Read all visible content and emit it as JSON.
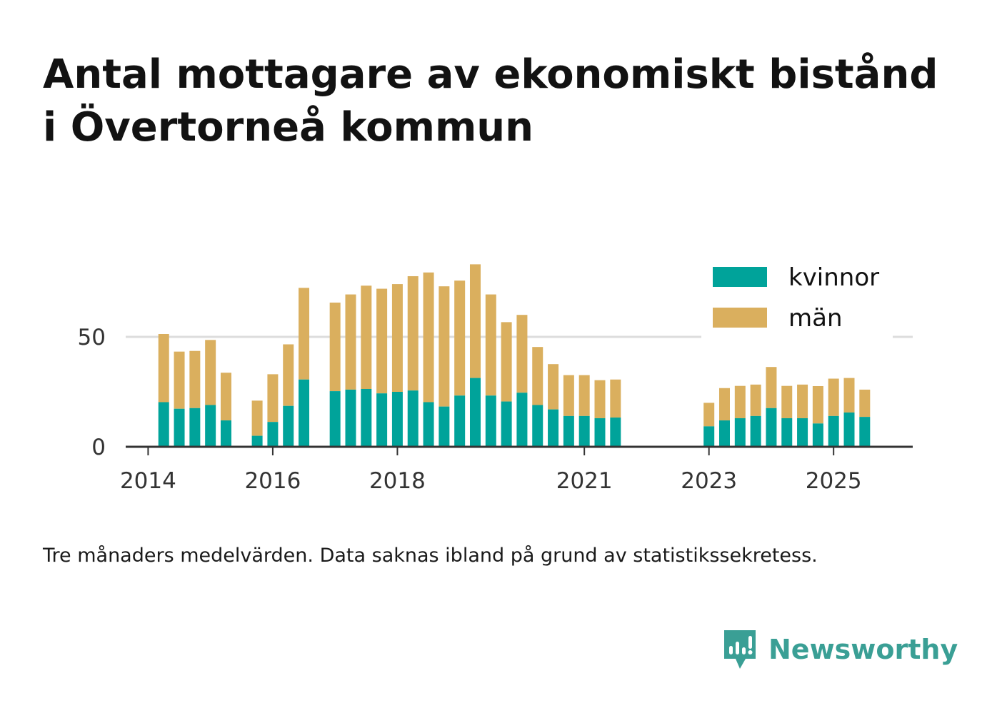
{
  "title_lines": [
    "Antal mottagare av ekonomiskt bistånd",
    "i Övertorneå kommun"
  ],
  "footnote": "Tre månaders medelvärden. Data saknas ibland på grund av statistikssekretess.",
  "brand": {
    "name": "Newsworthy",
    "icon": "newsworthy-logo-icon"
  },
  "colors": {
    "kvinnor": "#00a39a",
    "man": "#daaf5e",
    "axis": "#333333",
    "grid": "#dddddd",
    "brand": "#3a9f95"
  },
  "chart_data": {
    "type": "bar",
    "stacked": true,
    "title": "Antal mottagare av ekonomiskt bistånd i Övertorneå kommun",
    "xlabel": "",
    "ylabel": "",
    "ylim": [
      0,
      90
    ],
    "yticks": [
      0,
      50
    ],
    "x_tick_labels": [
      {
        "label": "2014",
        "x": 2014.0
      },
      {
        "label": "2016",
        "x": 2016.0
      },
      {
        "label": "2018",
        "x": 2018.0
      },
      {
        "label": "2021",
        "x": 2021.0
      },
      {
        "label": "2023",
        "x": 2023.0
      },
      {
        "label": "2025",
        "x": 2025.0
      }
    ],
    "xlim": [
      2013.64,
      2026.27
    ],
    "grid": true,
    "legend_position": "top-right",
    "x": [
      2014.25,
      2014.5,
      2014.75,
      2015.0,
      2015.25,
      2015.75,
      2016.0,
      2016.25,
      2016.5,
      2017.0,
      2017.25,
      2017.5,
      2017.75,
      2018.0,
      2018.25,
      2018.5,
      2018.75,
      2019.0,
      2019.25,
      2019.5,
      2019.75,
      2020.0,
      2020.25,
      2020.5,
      2020.75,
      2021.0,
      2021.25,
      2021.5,
      2023.0,
      2023.25,
      2023.5,
      2023.75,
      2024.0,
      2024.25,
      2024.5,
      2024.75,
      2025.0,
      2025.25,
      2025.5
    ],
    "series": [
      {
        "name": "kvinnor",
        "values": [
          20.3,
          17.3,
          17.6,
          19.0,
          12.0,
          5.0,
          11.3,
          18.6,
          30.6,
          25.3,
          26.0,
          26.3,
          24.3,
          25.0,
          25.6,
          20.3,
          18.3,
          23.3,
          31.3,
          23.3,
          20.6,
          24.6,
          19.0,
          17.0,
          14.0,
          14.0,
          13.0,
          13.3,
          9.3,
          12.0,
          13.0,
          14.0,
          17.6,
          13.0,
          13.0,
          10.6,
          14.0,
          15.6,
          13.6
        ]
      },
      {
        "name": "män",
        "values": [
          31.0,
          26.0,
          26.0,
          29.6,
          21.7,
          16.0,
          21.7,
          28.0,
          41.7,
          40.3,
          43.3,
          47.0,
          47.6,
          49.0,
          52.0,
          59.0,
          54.7,
          52.3,
          51.7,
          46.0,
          36.1,
          35.4,
          26.4,
          20.6,
          18.6,
          18.6,
          17.3,
          17.3,
          10.7,
          14.7,
          14.7,
          14.3,
          18.7,
          14.7,
          15.3,
          17.0,
          17.0,
          15.7,
          12.4
        ]
      }
    ],
    "legend": [
      "kvinnor",
      "män"
    ]
  }
}
